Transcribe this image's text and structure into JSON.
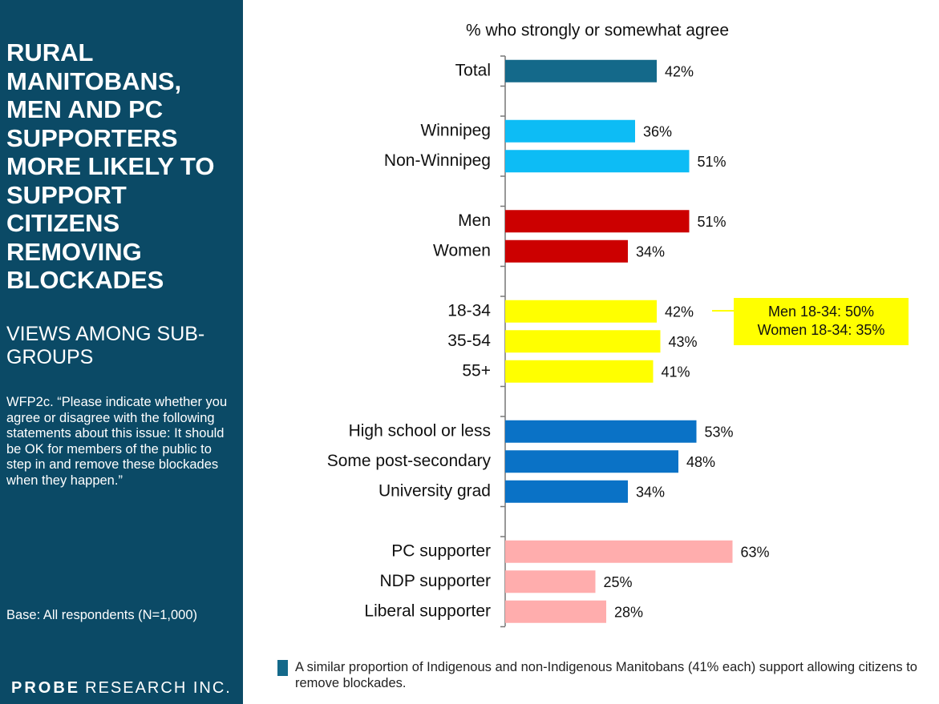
{
  "sidebar": {
    "title": "RURAL MANITOBANS, MEN AND PC SUPPORTERS MORE LIKELY TO SUPPORT CITIZENS REMOVING BLOCKADES",
    "subtitle": "VIEWS AMONG SUB-GROUPS",
    "question": "WFP2c. “Please indicate whether you agree or disagree with the following statements about this issue: It should be OK for members of the public to step in and remove these blockades when they happen.”",
    "base": "Base: All respondents (N=1,000)",
    "logo": {
      "name": "PROBE",
      "suffix": "RESEARCH INC."
    }
  },
  "chart_data": {
    "type": "bar",
    "orientation": "horizontal",
    "title": "% who strongly or somewhat agree",
    "categories": [
      "Total",
      null,
      "Winnipeg",
      "Non-Winnipeg",
      null,
      "Men",
      "Women",
      null,
      "18-34",
      "35-54",
      "55+",
      null,
      "High school or less",
      "Some post-secondary",
      "University grad",
      null,
      "PC supporter",
      "NDP supporter",
      "Liberal supporter"
    ],
    "values": [
      42,
      null,
      36,
      51,
      null,
      51,
      34,
      null,
      42,
      43,
      41,
      null,
      53,
      48,
      34,
      null,
      63,
      25,
      28
    ],
    "value_labels": [
      "42%",
      null,
      "36%",
      "51%",
      null,
      "51%",
      "34%",
      null,
      "42%",
      "43%",
      "41%",
      null,
      "53%",
      "48%",
      "34%",
      null,
      "63%",
      "25%",
      "28%"
    ],
    "colors": [
      "#14698a",
      null,
      "#0dbcf5",
      "#0dbcf5",
      null,
      "#cc0000",
      "#cc0000",
      null,
      "#ffff00",
      "#ffff00",
      "#ffff00",
      null,
      "#0a72c6",
      "#0a72c6",
      "#0a72c6",
      null,
      "#ffadad",
      "#ffadad",
      "#ffadad"
    ],
    "annotations": [
      "Men 18-34: 50%",
      "Women 18-34: 35%"
    ],
    "footnote": "A similar proportion of Indigenous and non-Indigenous Manitobans (41% each) support allowing citizens to remove blockades."
  }
}
